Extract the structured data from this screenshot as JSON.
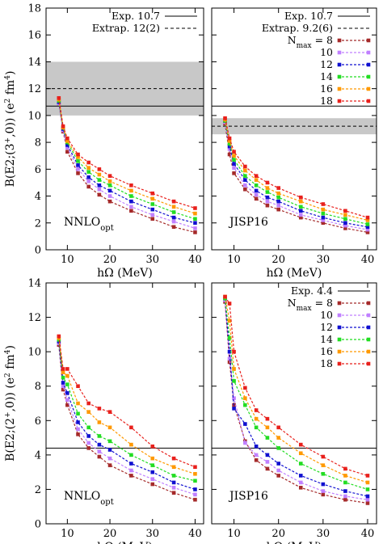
{
  "chart_data": [
    {
      "type": "line",
      "panel": "top-left",
      "title": "",
      "xlabel": "hΩ (MeV)",
      "ylabel": "B(E2;(3+,0)) (e2 fm4)",
      "ylabel_parts": {
        "main": "B(E2;(3",
        "sup1": "+",
        "mid": ",0))  (e",
        "sup2": "2",
        "mid2": " fm",
        "sup3": "4",
        "end": ")"
      },
      "xlim": [
        5,
        42
      ],
      "ylim": [
        0,
        18
      ],
      "xticks": [
        10,
        20,
        30,
        40
      ],
      "yticks": [
        0,
        2,
        4,
        6,
        8,
        10,
        12,
        14,
        16,
        18
      ],
      "grid": false,
      "annotation": {
        "main": "NNLO",
        "sub": "opt"
      },
      "exp": {
        "label": "Exp.  10.7",
        "value": 10.7
      },
      "extrap": {
        "label": "Extrap.  12(2)",
        "value": 12,
        "band": [
          10,
          14
        ]
      },
      "legend_position": "top-right",
      "legend_nmax": false,
      "series": [
        {
          "name": "8",
          "color": "#a52a2a",
          "x": [
            8,
            9,
            10,
            12.5,
            15,
            17.5,
            20,
            25,
            30,
            35,
            40
          ],
          "y": [
            10.9,
            8.8,
            7.3,
            5.7,
            4.7,
            4.1,
            3.6,
            2.9,
            2.3,
            1.7,
            1.3
          ]
        },
        {
          "name": "10",
          "color": "#c080ff",
          "x": [
            8,
            9,
            10,
            12.5,
            15,
            17.5,
            20,
            25,
            30,
            35,
            40
          ],
          "y": [
            10.9,
            8.9,
            7.6,
            6.0,
            5.1,
            4.5,
            4.0,
            3.2,
            2.6,
            2.1,
            1.6
          ]
        },
        {
          "name": "12",
          "color": "#1010d0",
          "x": [
            8,
            9,
            10,
            12.5,
            15,
            17.5,
            20,
            25,
            30,
            35,
            40
          ],
          "y": [
            11.0,
            9.0,
            7.8,
            6.3,
            5.4,
            4.8,
            4.4,
            3.6,
            3.0,
            2.4,
            2.0
          ]
        },
        {
          "name": "14",
          "color": "#22dd22",
          "x": [
            8,
            9,
            10,
            12.5,
            15,
            17.5,
            20,
            25,
            30,
            35,
            40
          ],
          "y": [
            11.1,
            9.1,
            8.0,
            6.6,
            5.8,
            5.2,
            4.8,
            4.0,
            3.4,
            2.8,
            2.3
          ]
        },
        {
          "name": "16",
          "color": "#ff9900",
          "x": [
            8,
            9,
            10,
            12.5,
            15,
            17.5,
            20,
            25,
            30,
            35,
            40
          ],
          "y": [
            11.2,
            9.1,
            8.1,
            6.9,
            6.1,
            5.6,
            5.1,
            4.4,
            3.8,
            3.2,
            2.7
          ]
        },
        {
          "name": "18",
          "color": "#e8201c",
          "x": [
            8,
            9,
            10,
            12.5,
            15,
            17.5,
            20,
            25,
            30,
            35,
            40
          ],
          "y": [
            11.3,
            9.2,
            8.3,
            7.1,
            6.5,
            6.0,
            5.5,
            4.8,
            4.2,
            3.6,
            3.1
          ]
        }
      ]
    },
    {
      "type": "line",
      "panel": "top-right",
      "title": "",
      "xlabel": "hΩ (MeV)",
      "ylabel": "",
      "xlim": [
        5,
        42
      ],
      "ylim": [
        0,
        18
      ],
      "xticks": [
        10,
        20,
        30,
        40
      ],
      "yticks": [],
      "grid": false,
      "annotation": {
        "main": "JISP16",
        "sub": ""
      },
      "exp": {
        "label": "Exp.  10.7",
        "value": 10.7
      },
      "extrap": {
        "label": "Extrap.  9.2(6)",
        "value": 9.2,
        "band": [
          8.6,
          9.8
        ]
      },
      "legend_position": "top-right",
      "legend_nmax": true,
      "nmax_label": {
        "main": "N",
        "sub": "max",
        "end": " = "
      },
      "series": [
        {
          "name": "8",
          "color": "#a52a2a",
          "x": [
            8,
            9,
            10,
            12.5,
            15,
            17.5,
            20,
            25,
            30,
            35,
            40
          ],
          "y": [
            9.4,
            7.1,
            5.7,
            4.5,
            3.8,
            3.3,
            3.0,
            2.4,
            2.0,
            1.6,
            1.3
          ]
        },
        {
          "name": "10",
          "color": "#c080ff",
          "x": [
            8,
            9,
            10,
            12.5,
            15,
            17.5,
            20,
            25,
            30,
            35,
            40
          ],
          "y": [
            9.5,
            7.5,
            6.1,
            4.8,
            4.1,
            3.6,
            3.3,
            2.6,
            2.2,
            1.8,
            1.5
          ]
        },
        {
          "name": "12",
          "color": "#1010d0",
          "x": [
            8,
            9,
            10,
            12.5,
            15,
            17.5,
            20,
            25,
            30,
            35,
            40
          ],
          "y": [
            9.6,
            7.7,
            6.4,
            5.2,
            4.4,
            3.9,
            3.6,
            2.9,
            2.4,
            2.0,
            1.7
          ]
        },
        {
          "name": "14",
          "color": "#22dd22",
          "x": [
            8,
            9,
            10,
            12.5,
            15,
            17.5,
            20,
            25,
            30,
            35,
            40
          ],
          "y": [
            9.6,
            7.9,
            6.7,
            5.5,
            4.8,
            4.3,
            3.9,
            3.2,
            2.7,
            2.3,
            1.9
          ]
        },
        {
          "name": "16",
          "color": "#ff9900",
          "x": [
            8,
            9,
            10,
            12.5,
            15,
            17.5,
            20,
            25,
            30,
            35,
            40
          ],
          "y": [
            9.7,
            8.1,
            7.0,
            5.9,
            5.2,
            4.6,
            4.2,
            3.6,
            3.0,
            2.6,
            2.2
          ]
        },
        {
          "name": "18",
          "color": "#e8201c",
          "x": [
            8,
            9,
            10,
            12.5,
            15,
            17.5,
            20,
            25,
            30,
            35,
            40
          ],
          "y": [
            9.8,
            8.3,
            7.3,
            6.2,
            5.5,
            5.0,
            4.6,
            3.9,
            3.4,
            2.9,
            2.4
          ]
        }
      ]
    },
    {
      "type": "line",
      "panel": "bottom-left",
      "title": "",
      "xlabel": "hΩ (MeV)",
      "ylabel": "B(E2;(2+,0)) (e2 fm4)",
      "ylabel_parts": {
        "main": "B(E2;(2",
        "sup1": "+",
        "mid": ",0))  (e",
        "sup2": "2",
        "mid2": " fm",
        "sup3": "4",
        "end": ")"
      },
      "xlim": [
        5,
        42
      ],
      "ylim": [
        0,
        14
      ],
      "xticks": [
        10,
        20,
        30,
        40
      ],
      "yticks": [
        0,
        2,
        4,
        6,
        8,
        10,
        12,
        14
      ],
      "grid": false,
      "annotation": {
        "main": "NNLO",
        "sub": "opt"
      },
      "exp": {
        "label": "",
        "value": 4.4
      },
      "extrap": null,
      "legend_position": "none",
      "legend_nmax": false,
      "series": [
        {
          "name": "8",
          "color": "#a52a2a",
          "x": [
            8,
            9,
            10,
            12.5,
            15,
            17.5,
            20,
            25,
            30,
            35,
            40
          ],
          "y": [
            10.4,
            7.8,
            6.9,
            5.2,
            4.4,
            3.9,
            3.4,
            2.8,
            2.3,
            1.8,
            1.4
          ]
        },
        {
          "name": "10",
          "color": "#c080ff",
          "x": [
            8,
            9,
            10,
            12.5,
            15,
            17.5,
            20,
            25,
            30,
            35,
            40
          ],
          "y": [
            10.5,
            8.0,
            7.2,
            5.5,
            4.7,
            4.2,
            3.8,
            3.1,
            2.6,
            2.1,
            1.7
          ]
        },
        {
          "name": "12",
          "color": "#1010d0",
          "x": [
            8,
            9,
            10,
            12.5,
            15,
            17.5,
            20,
            25,
            30,
            35,
            40
          ],
          "y": [
            10.6,
            8.2,
            7.6,
            5.9,
            5.1,
            4.6,
            4.3,
            3.5,
            3.0,
            2.4,
            2.0
          ]
        },
        {
          "name": "14",
          "color": "#22dd22",
          "x": [
            8,
            9,
            10,
            12.5,
            15,
            17.5,
            20,
            25,
            30,
            35,
            40
          ],
          "y": [
            10.7,
            8.5,
            8.1,
            6.4,
            5.6,
            5.1,
            4.8,
            4.0,
            3.4,
            2.8,
            2.5
          ]
        },
        {
          "name": "16",
          "color": "#ff9900",
          "x": [
            8,
            9,
            10,
            12.5,
            15,
            17.5,
            20,
            25,
            30,
            35,
            40
          ],
          "y": [
            10.8,
            8.8,
            8.6,
            7.0,
            6.5,
            5.9,
            5.6,
            4.6,
            3.8,
            3.3,
            2.9
          ]
        },
        {
          "name": "18",
          "color": "#e8201c",
          "x": [
            8,
            9,
            10,
            12.5,
            15,
            17.5,
            20,
            25,
            30,
            35,
            40
          ],
          "y": [
            10.9,
            9.0,
            9.0,
            8.0,
            7.0,
            6.7,
            6.5,
            5.6,
            4.5,
            3.8,
            3.3
          ]
        }
      ]
    },
    {
      "type": "line",
      "panel": "bottom-right",
      "title": "",
      "xlabel": "hΩ (MeV)",
      "ylabel": "",
      "xlim": [
        5,
        42
      ],
      "ylim": [
        0,
        14
      ],
      "xticks": [
        10,
        20,
        30,
        40
      ],
      "yticks": [],
      "grid": false,
      "annotation": {
        "main": "JISP16",
        "sub": ""
      },
      "exp": {
        "label": "Exp.  4.4",
        "value": 4.4
      },
      "extrap": null,
      "legend_position": "top-right",
      "legend_nmax": true,
      "nmax_label": {
        "main": "N",
        "sub": "max",
        "end": " = "
      },
      "series": [
        {
          "name": "8",
          "color": "#a52a2a",
          "x": [
            8,
            9,
            10,
            12.5,
            15,
            17.5,
            20,
            25,
            30,
            35,
            40
          ],
          "y": [
            12.9,
            9.4,
            6.9,
            4.8,
            3.7,
            3.2,
            2.8,
            2.1,
            1.7,
            1.4,
            1.2
          ]
        },
        {
          "name": "10",
          "color": "#c080ff",
          "x": [
            8,
            9,
            10,
            12.5,
            15,
            17.5,
            20,
            25,
            30,
            35,
            40
          ],
          "y": [
            13.0,
            9.6,
            7.3,
            4.7,
            4.0,
            3.6,
            3.1,
            2.4,
            1.9,
            1.6,
            1.4
          ]
        },
        {
          "name": "12",
          "color": "#1010d0",
          "x": [
            8,
            9,
            10,
            12.5,
            15,
            17.5,
            20,
            25,
            30,
            35,
            40
          ],
          "y": [
            13.1,
            10.0,
            6.7,
            5.8,
            4.5,
            4.0,
            3.5,
            2.8,
            2.3,
            1.9,
            1.6
          ]
        },
        {
          "name": "14",
          "color": "#22dd22",
          "x": [
            8,
            9,
            10,
            12.5,
            15,
            17.5,
            20,
            25,
            30,
            35,
            40
          ],
          "y": [
            13.1,
            10.8,
            8.3,
            6.9,
            5.6,
            5.0,
            4.4,
            3.5,
            2.9,
            2.4,
            2.0
          ]
        },
        {
          "name": "16",
          "color": "#ff9900",
          "x": [
            8,
            9,
            10,
            12.5,
            15,
            17.5,
            20,
            25,
            30,
            35,
            40
          ],
          "y": [
            13.2,
            11.8,
            9.0,
            7.3,
            6.1,
            5.6,
            5.0,
            4.1,
            3.4,
            2.8,
            2.4
          ]
        },
        {
          "name": "18",
          "color": "#e8201c",
          "x": [
            8,
            9,
            10,
            12.5,
            15,
            17.5,
            20,
            25,
            30,
            35,
            40
          ],
          "y": [
            13.2,
            12.8,
            10.0,
            7.9,
            6.6,
            6.1,
            5.6,
            4.6,
            3.9,
            3.2,
            2.8
          ]
        }
      ]
    }
  ]
}
